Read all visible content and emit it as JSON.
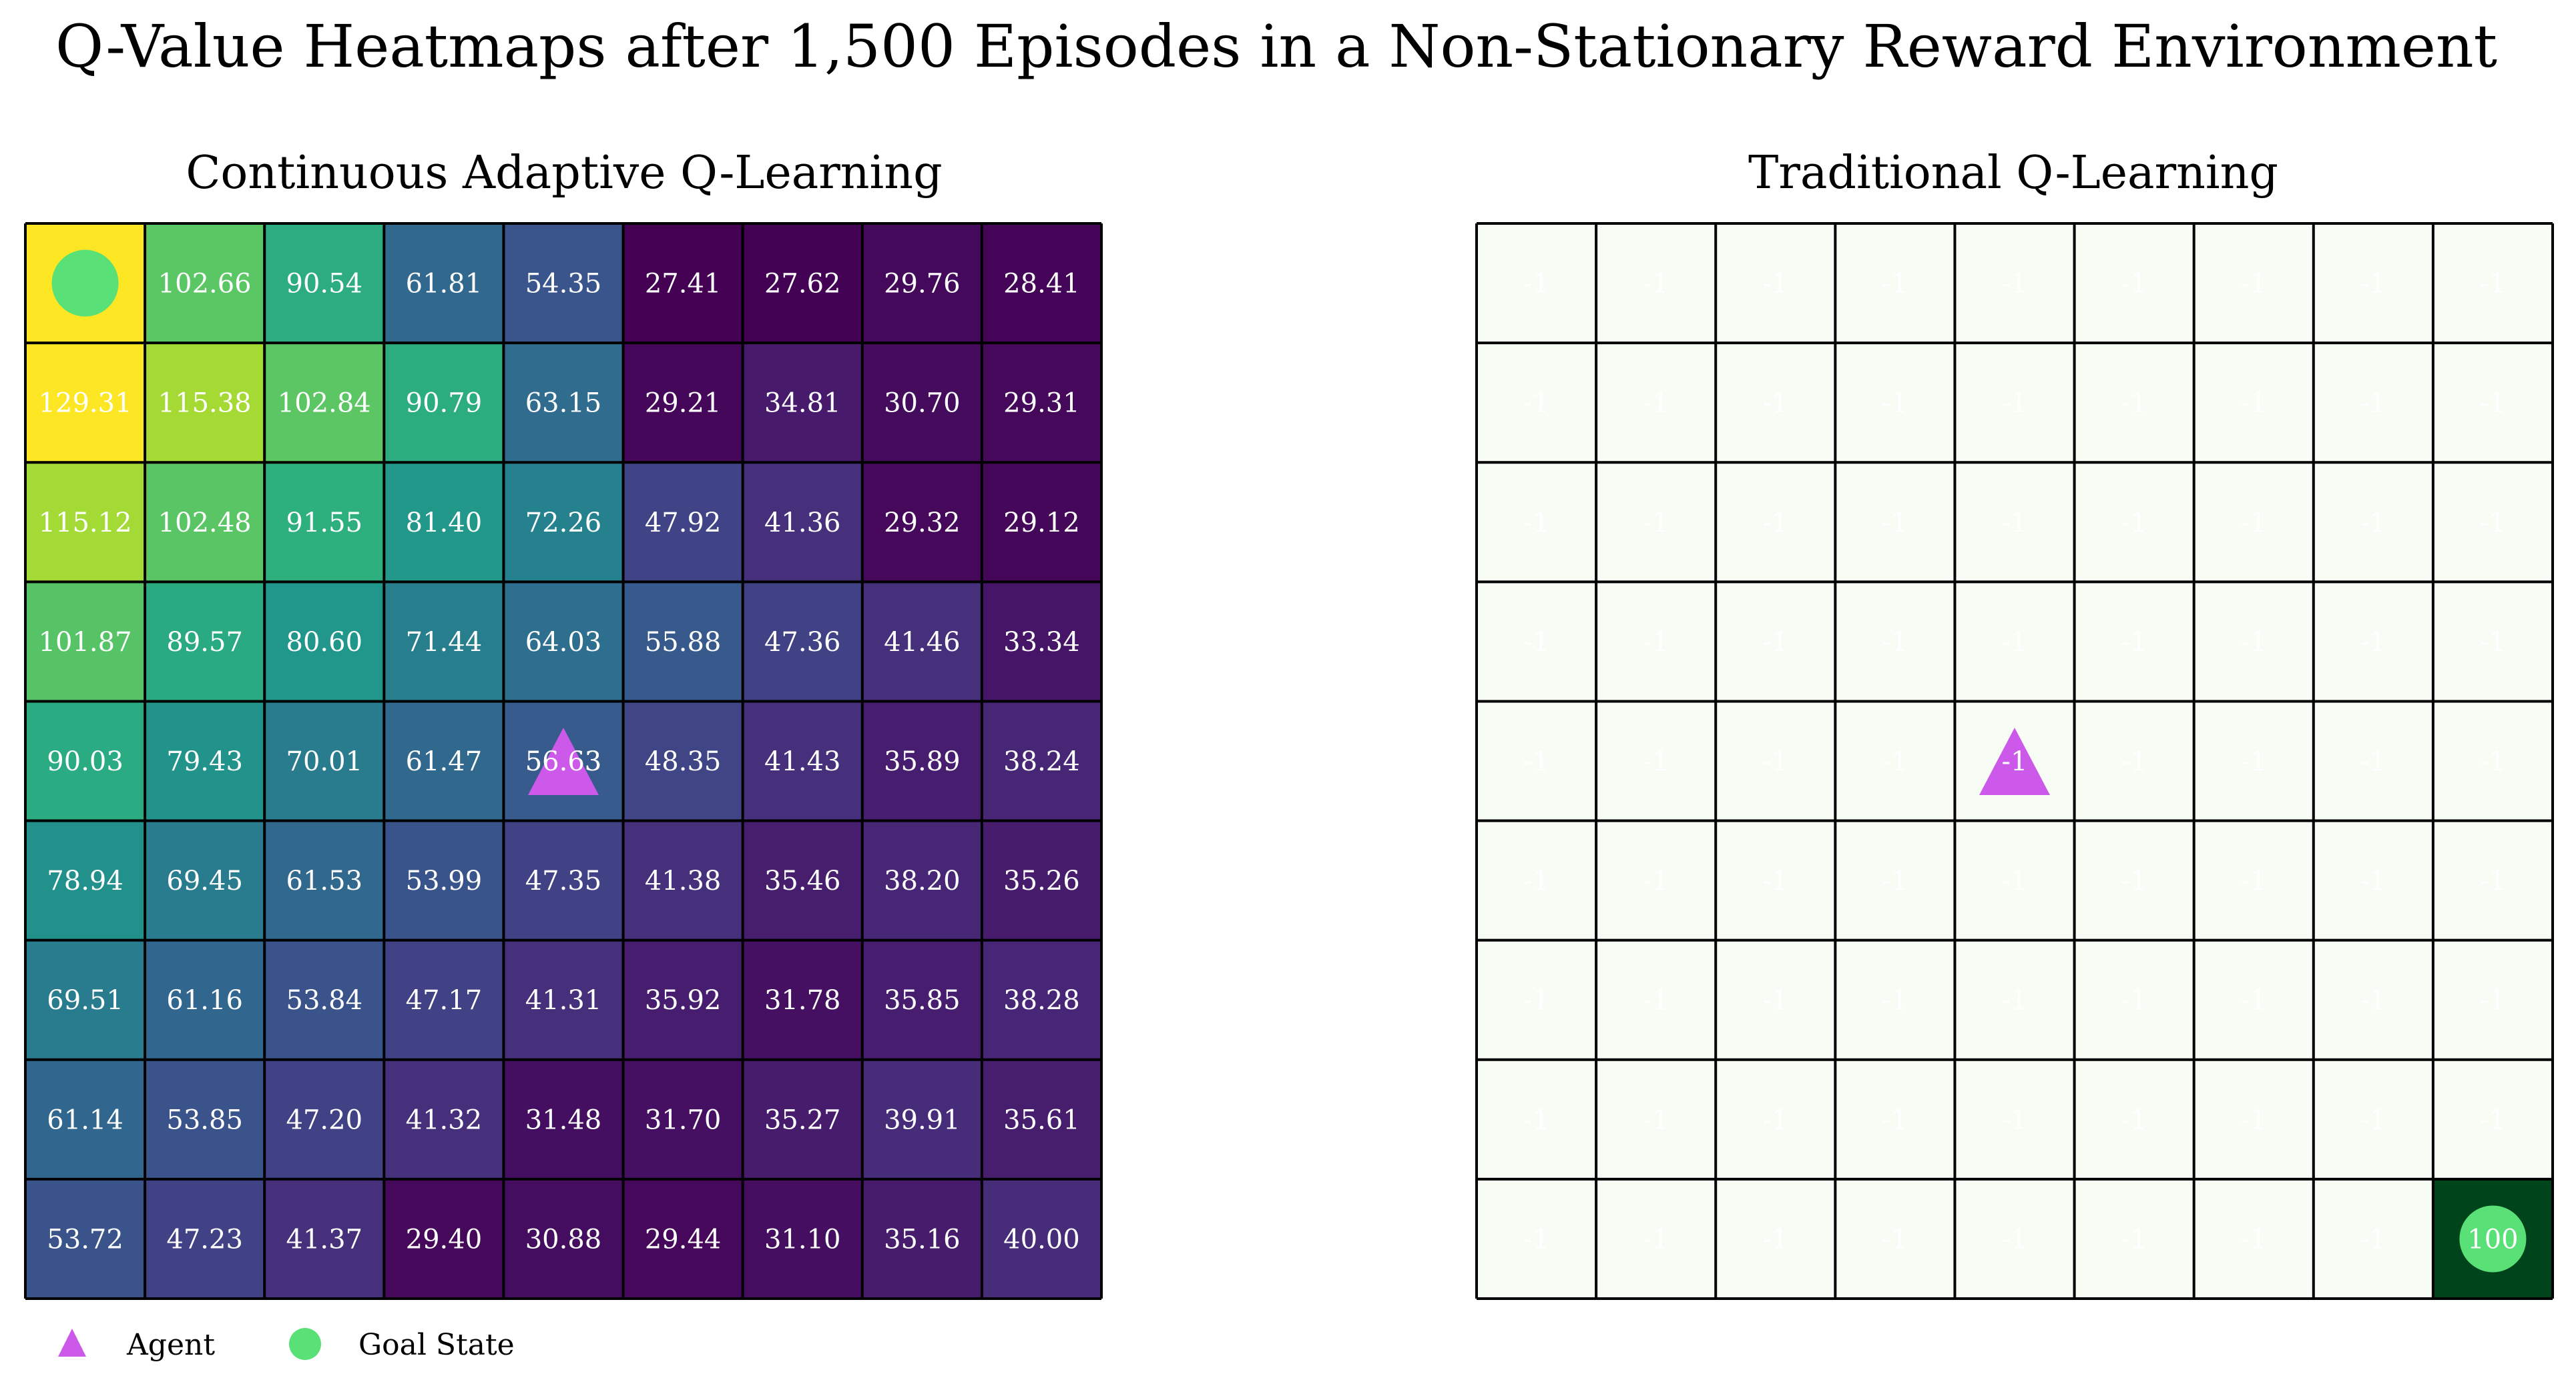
{
  "figure": {
    "title": "Q-Value Heatmaps after 1,500 Episodes in a Non-Stationary Reward Environment"
  },
  "chart_data": [
    {
      "type": "heatmap",
      "title": "Continuous Adaptive Q-Learning",
      "colormap": "viridis",
      "vmin": 27.41,
      "vmax": 129.31,
      "rows": 9,
      "cols": 9,
      "values": [
        [
          129.31,
          102.66,
          90.54,
          61.81,
          54.35,
          27.41,
          27.62,
          29.76,
          28.41
        ],
        [
          129.31,
          115.38,
          102.84,
          90.79,
          63.15,
          29.21,
          34.81,
          30.7,
          29.31
        ],
        [
          115.12,
          102.48,
          91.55,
          81.4,
          72.26,
          47.92,
          41.36,
          29.32,
          29.12
        ],
        [
          101.87,
          89.57,
          80.6,
          71.44,
          64.03,
          55.88,
          47.36,
          41.46,
          33.34
        ],
        [
          90.03,
          79.43,
          70.01,
          61.47,
          56.63,
          48.35,
          41.43,
          35.89,
          38.24
        ],
        [
          78.94,
          69.45,
          61.53,
          53.99,
          47.35,
          41.38,
          35.46,
          38.2,
          35.26
        ],
        [
          69.51,
          61.16,
          53.84,
          47.17,
          41.31,
          35.92,
          31.78,
          35.85,
          38.28
        ],
        [
          61.14,
          53.85,
          47.2,
          41.32,
          31.48,
          31.7,
          35.27,
          39.91,
          35.61
        ],
        [
          53.72,
          47.23,
          41.37,
          29.4,
          30.88,
          29.44,
          31.1,
          35.16,
          40.0
        ]
      ],
      "labels": [
        [
          "",
          "102.66",
          "90.54",
          "61.81",
          "54.35",
          "27.41",
          "27.62",
          "29.76",
          "28.41"
        ],
        [
          "129.31",
          "115.38",
          "102.84",
          "90.79",
          "63.15",
          "29.21",
          "34.81",
          "30.70",
          "29.31"
        ],
        [
          "115.12",
          "102.48",
          "91.55",
          "81.40",
          "72.26",
          "47.92",
          "41.36",
          "29.32",
          "29.12"
        ],
        [
          "101.87",
          "89.57",
          "80.60",
          "71.44",
          "64.03",
          "55.88",
          "47.36",
          "41.46",
          "33.34"
        ],
        [
          "90.03",
          "79.43",
          "70.01",
          "61.47",
          "56.63",
          "48.35",
          "41.43",
          "35.89",
          "38.24"
        ],
        [
          "78.94",
          "69.45",
          "61.53",
          "53.99",
          "47.35",
          "41.38",
          "35.46",
          "38.20",
          "35.26"
        ],
        [
          "69.51",
          "61.16",
          "53.84",
          "47.17",
          "41.31",
          "35.92",
          "31.78",
          "35.85",
          "38.28"
        ],
        [
          "61.14",
          "53.85",
          "47.20",
          "41.32",
          "31.48",
          "31.70",
          "35.27",
          "39.91",
          "35.61"
        ],
        [
          "53.72",
          "47.23",
          "41.37",
          "29.40",
          "30.88",
          "29.44",
          "31.10",
          "35.16",
          "40.00"
        ]
      ],
      "agent": {
        "row": 4,
        "col": 4
      },
      "goal": {
        "row": 0,
        "col": 0
      }
    },
    {
      "type": "heatmap",
      "title": "Traditional Q-Learning",
      "colormap": "greens",
      "vmin": -1,
      "vmax": 100,
      "rows": 9,
      "cols": 9,
      "values": [
        [
          -1,
          -1,
          -1,
          -1,
          -1,
          -1,
          -1,
          -1,
          -1
        ],
        [
          -1,
          -1,
          -1,
          -1,
          -1,
          -1,
          -1,
          -1,
          -1
        ],
        [
          -1,
          -1,
          -1,
          -1,
          -1,
          -1,
          -1,
          -1,
          -1
        ],
        [
          -1,
          -1,
          -1,
          -1,
          -1,
          -1,
          -1,
          -1,
          -1
        ],
        [
          -1,
          -1,
          -1,
          -1,
          -1,
          -1,
          -1,
          -1,
          -1
        ],
        [
          -1,
          -1,
          -1,
          -1,
          -1,
          -1,
          -1,
          -1,
          -1
        ],
        [
          -1,
          -1,
          -1,
          -1,
          -1,
          -1,
          -1,
          -1,
          -1
        ],
        [
          -1,
          -1,
          -1,
          -1,
          -1,
          -1,
          -1,
          -1,
          -1
        ],
        [
          -1,
          -1,
          -1,
          -1,
          -1,
          -1,
          -1,
          -1,
          100
        ]
      ],
      "labels": [
        [
          "-1",
          "-1",
          "-1",
          "-1",
          "-1",
          "-1",
          "-1",
          "-1",
          "-1"
        ],
        [
          "-1",
          "-1",
          "-1",
          "-1",
          "-1",
          "-1",
          "-1",
          "-1",
          "-1"
        ],
        [
          "-1",
          "-1",
          "-1",
          "-1",
          "-1",
          "-1",
          "-1",
          "-1",
          "-1"
        ],
        [
          "-1",
          "-1",
          "-1",
          "-1",
          "-1",
          "-1",
          "-1",
          "-1",
          "-1"
        ],
        [
          "-1",
          "-1",
          "-1",
          "-1",
          "-1",
          "-1",
          "-1",
          "-1",
          "-1"
        ],
        [
          "-1",
          "-1",
          "-1",
          "-1",
          "-1",
          "-1",
          "-1",
          "-1",
          "-1"
        ],
        [
          "-1",
          "-1",
          "-1",
          "-1",
          "-1",
          "-1",
          "-1",
          "-1",
          "-1"
        ],
        [
          "-1",
          "-1",
          "-1",
          "-1",
          "-1",
          "-1",
          "-1",
          "-1",
          "-1"
        ],
        [
          "-1",
          "-1",
          "-1",
          "-1",
          "-1",
          "-1",
          "-1",
          "-1",
          "100"
        ]
      ],
      "agent": {
        "row": 4,
        "col": 4
      },
      "goal": {
        "row": 8,
        "col": 8
      }
    }
  ],
  "legend": {
    "placement": "bottom-left",
    "items": [
      {
        "label": "Agent",
        "marker": "triangle",
        "color": "#cd59eb"
      },
      {
        "label": "Goal State",
        "marker": "circle",
        "color": "#59e077"
      }
    ]
  },
  "colors": {
    "agent_marker": "#cd59eb",
    "goal_marker": "#59e077",
    "grid_line": "#000000",
    "traditional_low": "#f7fcf5",
    "traditional_high": "#00441b"
  }
}
